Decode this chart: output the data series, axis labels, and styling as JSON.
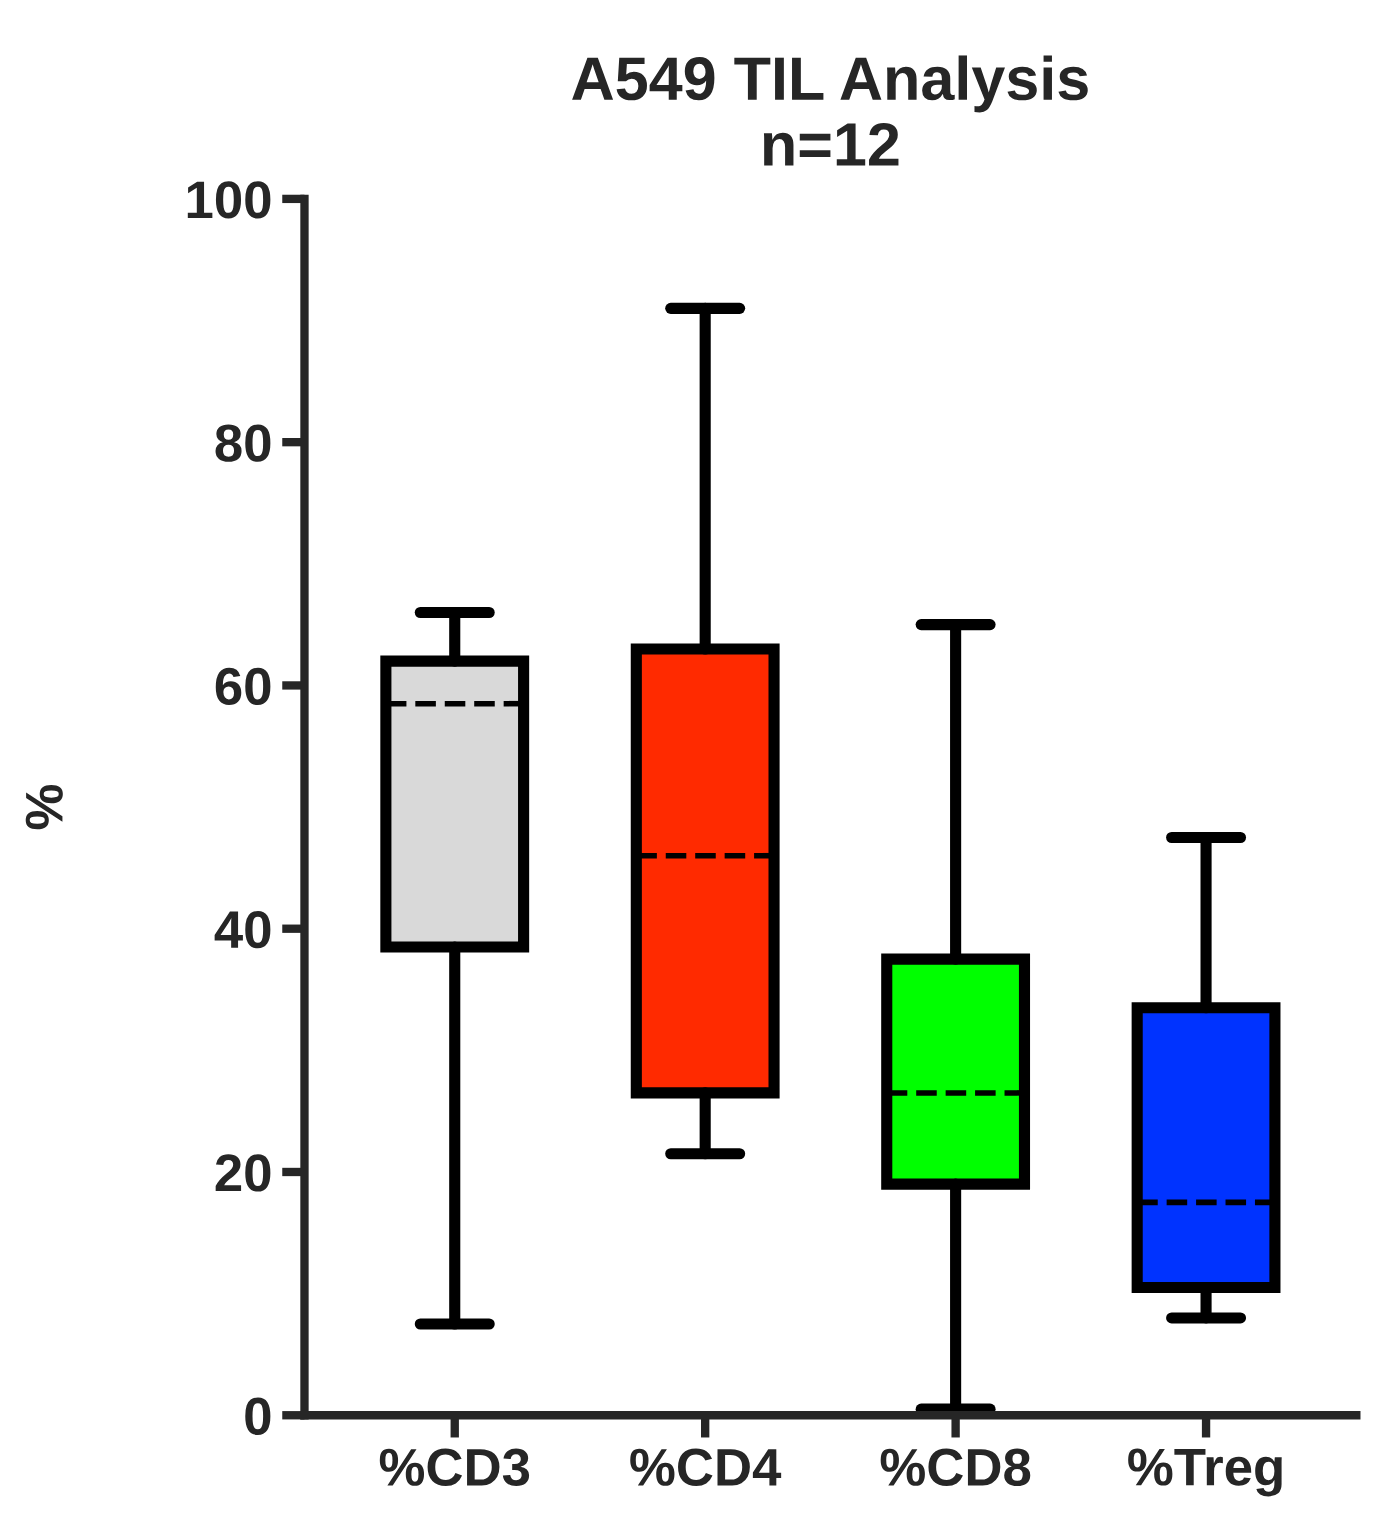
{
  "chart_data": {
    "type": "box",
    "title": "A549 TIL Analysis\nn=12",
    "ylabel": "%",
    "categories": [
      "%CD3",
      "%CD4",
      "%CD8",
      "%Treg"
    ],
    "colors": [
      "#d9d9d9",
      "#ff2a00",
      "#00ff00",
      "#0033ff"
    ],
    "boxes": [
      {
        "low": 7.5,
        "q1": 38.5,
        "median": 58.5,
        "q3": 62,
        "high": 66
      },
      {
        "low": 21.5,
        "q1": 26.5,
        "median": 46,
        "q3": 63,
        "high": 91
      },
      {
        "low": 0.5,
        "q1": 19,
        "median": 26.5,
        "q3": 37.5,
        "high": 65
      },
      {
        "low": 8,
        "q1": 10.5,
        "median": 17.5,
        "q3": 33.5,
        "high": 47.5
      }
    ],
    "ylim": [
      0,
      100
    ],
    "yticks": [
      0,
      20,
      40,
      60,
      80,
      100
    ],
    "grid": false
  }
}
